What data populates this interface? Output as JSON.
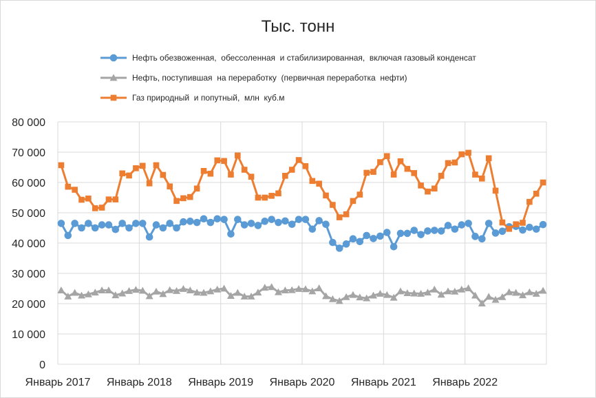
{
  "chart_data": {
    "type": "line",
    "title": "Тыс. тонн",
    "xlabel": "",
    "ylabel": "",
    "ylim": [
      0,
      80000
    ],
    "y_ticks": [
      "0",
      "10 000",
      "20 000",
      "30 000",
      "40 000",
      "50 000",
      "60 000",
      "70 000",
      "80 000"
    ],
    "x_tick_labels": [
      "Январь 2017",
      "Январь 2018",
      "Январь 2019",
      "Январь 2020",
      "Январь 2021",
      "Январь 2022"
    ],
    "x_start": "2017-01",
    "x_end": "2022-12",
    "grid": "vertical and horizontal gridlines",
    "legend_position": "top",
    "series": [
      {
        "name": "Нефть обезвоженная,  обессоленная  и стабилизированная,  включая газовый конденсат",
        "color": "#5b9bd5",
        "marker": "circle",
        "values": [
          46500,
          42500,
          46500,
          45000,
          46500,
          45000,
          46000,
          46000,
          44500,
          46500,
          45000,
          46500,
          46500,
          42000,
          46000,
          45000,
          46500,
          45000,
          47000,
          47200,
          46800,
          48000,
          46800,
          48000,
          47800,
          43000,
          47800,
          46000,
          46500,
          45800,
          47200,
          47800,
          46800,
          47300,
          46200,
          47800,
          47800,
          44600,
          47400,
          46200,
          40200,
          38300,
          39700,
          41400,
          40500,
          42500,
          41500,
          42300,
          43500,
          38800,
          43200,
          43200,
          44200,
          42800,
          44000,
          44200,
          44000,
          45800,
          44600,
          46000,
          46500,
          42200,
          41400,
          46500,
          43300,
          43900,
          45400,
          45500,
          44300,
          45200,
          44600,
          46100
        ]
      },
      {
        "name": "Нефть, поступившая  на переработку  (первичная переработка  нефти)",
        "color": "#a5a5a5",
        "marker": "triangle",
        "values": [
          24400,
          22400,
          23600,
          22700,
          23100,
          23700,
          24400,
          24400,
          22800,
          23400,
          24200,
          24600,
          24300,
          22500,
          24000,
          23200,
          24500,
          24200,
          24900,
          24400,
          23700,
          23600,
          24100,
          24700,
          25000,
          22600,
          23600,
          22400,
          22400,
          23700,
          25300,
          25500,
          23800,
          24400,
          24500,
          24900,
          24800,
          24100,
          25100,
          22500,
          21500,
          20900,
          22200,
          22900,
          22100,
          21800,
          22700,
          23300,
          22900,
          22000,
          24100,
          23500,
          23400,
          23300,
          23700,
          24700,
          23000,
          24100,
          24000,
          24700,
          25100,
          22700,
          20100,
          22300,
          21300,
          22200,
          23800,
          23600,
          22800,
          23800,
          23300,
          24300
        ]
      },
      {
        "name": "Газ природный  и попутный,  млн  куб.м",
        "color": "#ed7d31",
        "marker": "square",
        "values": [
          65700,
          58600,
          57600,
          54300,
          54700,
          51500,
          51700,
          54400,
          54400,
          63000,
          62300,
          64700,
          65500,
          59700,
          65700,
          62500,
          58700,
          53900,
          54800,
          55200,
          58000,
          63800,
          62900,
          67300,
          67100,
          62600,
          68900,
          64200,
          61900,
          55000,
          55000,
          55600,
          56400,
          62200,
          64200,
          67400,
          65400,
          60500,
          59600,
          55700,
          52600,
          48500,
          49500,
          53900,
          56000,
          63200,
          63500,
          66700,
          68700,
          62600,
          67000,
          64500,
          63100,
          59000,
          57000,
          58000,
          62200,
          66400,
          66600,
          69300,
          69800,
          62600,
          61300,
          68000,
          57300,
          46800,
          44700,
          46200,
          46700,
          53600,
          56300,
          60000
        ]
      }
    ]
  }
}
